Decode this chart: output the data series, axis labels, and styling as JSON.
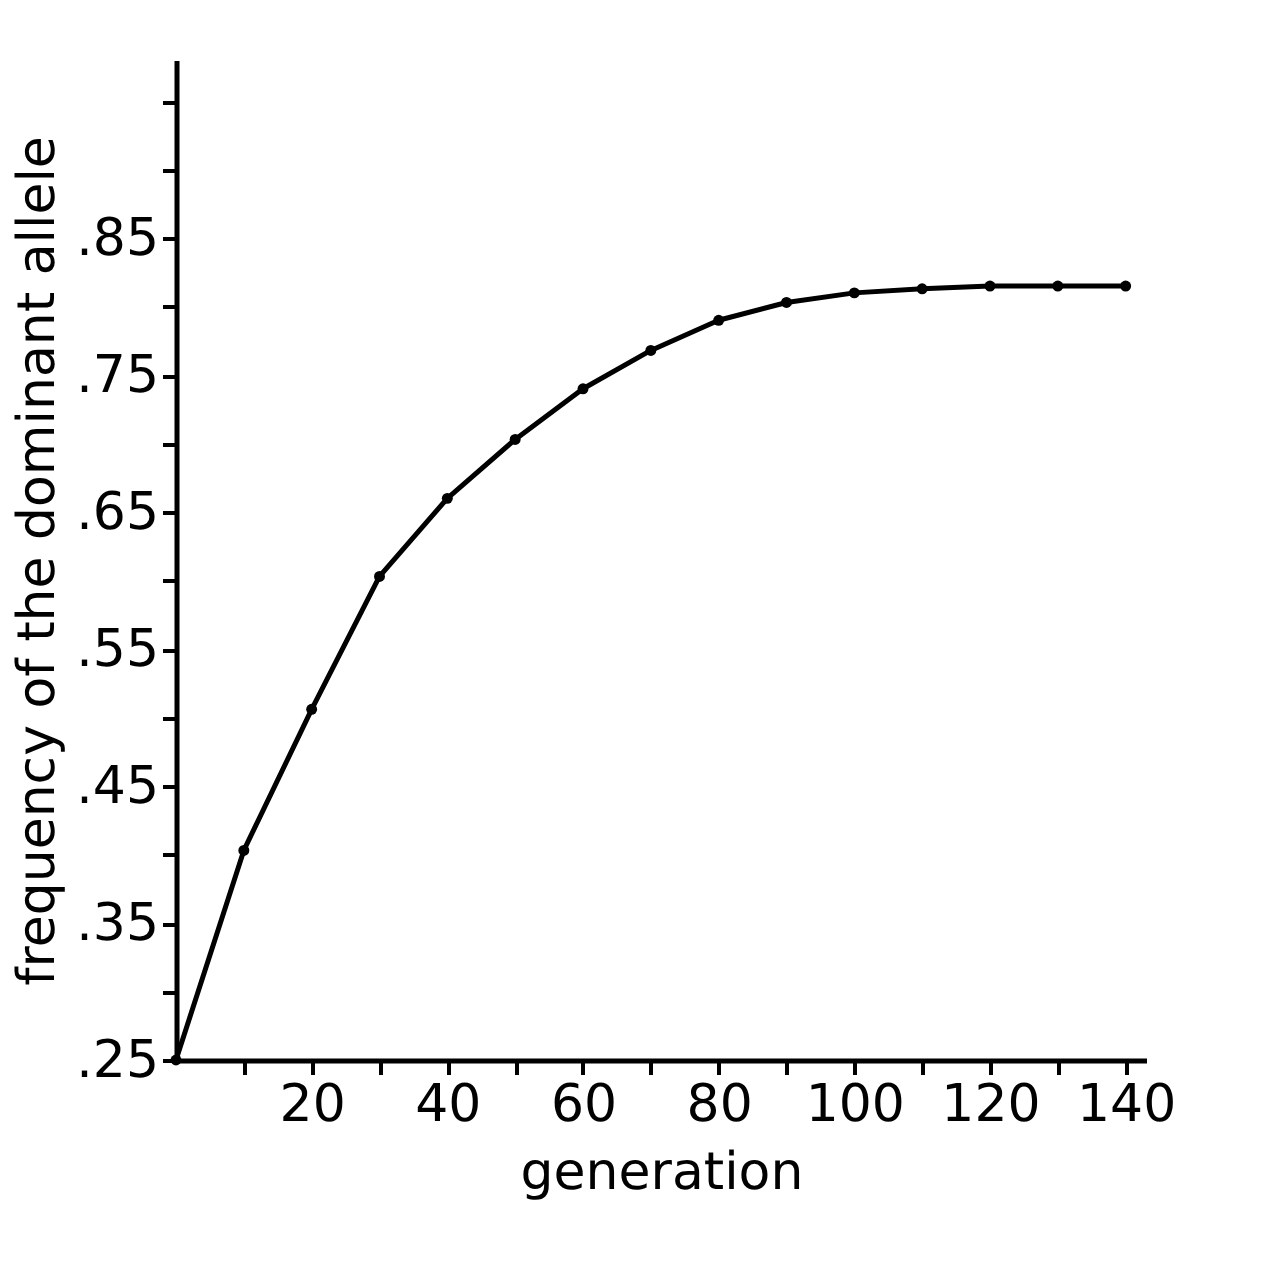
{
  "chart_data": {
    "type": "line",
    "xlabel": "generation",
    "ylabel": "frequency of the dominant allele",
    "x": [
      0,
      10,
      20,
      30,
      40,
      50,
      60,
      70,
      80,
      90,
      100,
      110,
      120,
      130,
      140
    ],
    "series": [
      {
        "color": "#000000",
        "values": [
          0.25,
          0.403,
          0.506,
          0.603,
          0.66,
          0.703,
          0.74,
          0.768,
          0.79,
          0.803,
          0.81,
          0.813,
          0.815,
          0.815,
          0.815
        ]
      }
    ],
    "xlim": [
      0,
      143
    ],
    "xticks": [
      {
        "value": 10,
        "label": null
      },
      20,
      {
        "value": 30,
        "label": null
      },
      40,
      {
        "value": 50,
        "label": null
      },
      60,
      {
        "value": 70,
        "label": null
      },
      80,
      {
        "value": 90,
        "label": null
      },
      100,
      {
        "value": 110,
        "label": null
      },
      120,
      {
        "value": 130,
        "label": null
      },
      140
    ],
    "ylim": [
      0.25,
      0.98
    ],
    "yticks": [
      {
        "value": 0.25,
        "label": ".25"
      },
      {
        "value": 0.3,
        "label": null
      },
      {
        "value": 0.35,
        "label": ".35"
      },
      {
        "value": 0.4,
        "label": null
      },
      {
        "value": 0.45,
        "label": ".45"
      },
      {
        "value": 0.5,
        "label": null
      },
      {
        "value": 0.55,
        "label": ".55"
      },
      {
        "value": 0.6,
        "label": null
      },
      {
        "value": 0.65,
        "label": ".65"
      },
      {
        "value": 0.7,
        "label": null
      },
      {
        "value": 0.75,
        "label": ".75"
      },
      {
        "value": 0.8,
        "label": null
      },
      {
        "value": 0.85,
        "label": ".85"
      },
      {
        "value": 0.9,
        "label": null
      },
      {
        "value": 0.95,
        "label": null
      }
    ],
    "marker": "circle",
    "line_style": "solid",
    "grid": false
  }
}
